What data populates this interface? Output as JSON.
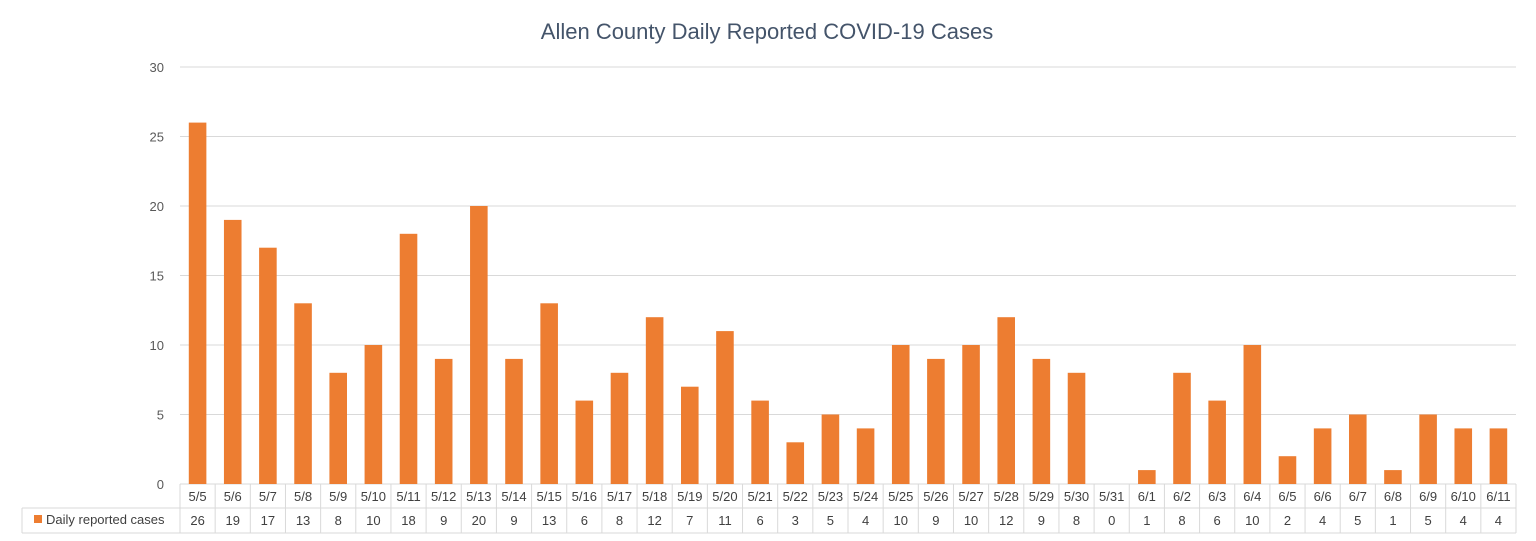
{
  "chart_data": {
    "type": "bar",
    "title": "Allen County Daily Reported COVID-19 Cases",
    "xlabel": "",
    "ylabel": "",
    "ylim": [
      0,
      30
    ],
    "yticks": [
      0,
      5,
      10,
      15,
      20,
      25,
      30
    ],
    "grid": true,
    "legend": "data-table",
    "categories": [
      "5/5",
      "5/6",
      "5/7",
      "5/8",
      "5/9",
      "5/10",
      "5/11",
      "5/12",
      "5/13",
      "5/14",
      "5/15",
      "5/16",
      "5/17",
      "5/18",
      "5/19",
      "5/20",
      "5/21",
      "5/22",
      "5/23",
      "5/24",
      "5/25",
      "5/26",
      "5/27",
      "5/28",
      "5/29",
      "5/30",
      "5/31",
      "6/1",
      "6/2",
      "6/3",
      "6/4",
      "6/5",
      "6/6",
      "6/7",
      "6/8",
      "6/9",
      "6/10",
      "6/11"
    ],
    "series": [
      {
        "name": "Daily reported cases",
        "color": "#ed7d31",
        "values": [
          26,
          19,
          17,
          13,
          8,
          10,
          18,
          9,
          20,
          9,
          13,
          6,
          8,
          12,
          7,
          11,
          6,
          3,
          5,
          4,
          10,
          9,
          10,
          12,
          9,
          8,
          0,
          1,
          8,
          6,
          10,
          2,
          4,
          5,
          1,
          5,
          4,
          4
        ]
      }
    ]
  },
  "colors": {
    "bar": "#ed7d31",
    "grid": "#d9d9d9",
    "title": "#44546a",
    "text": "#404040"
  }
}
